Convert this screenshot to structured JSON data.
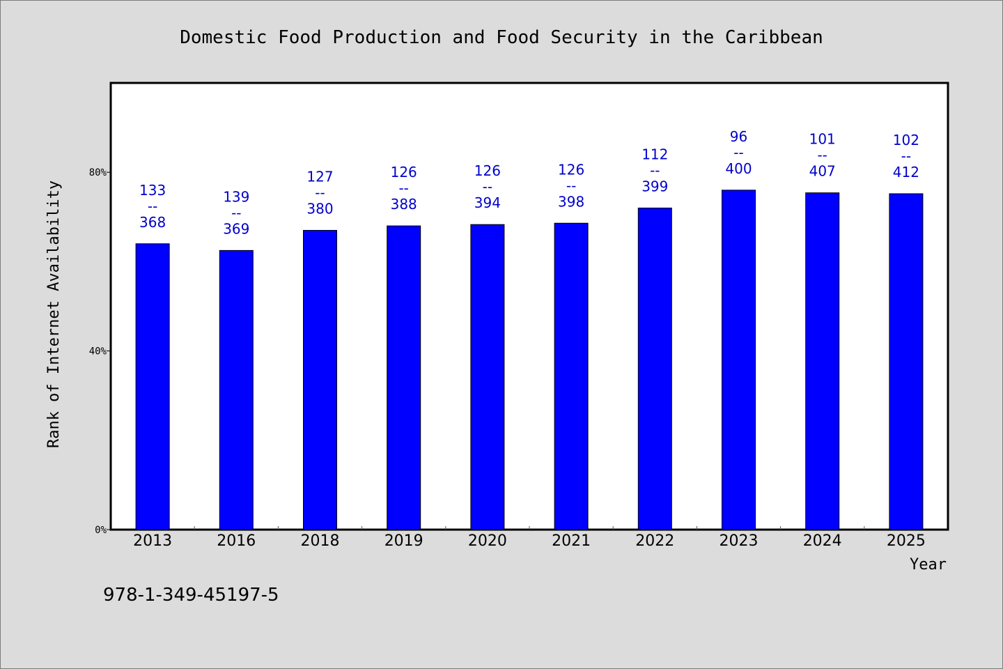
{
  "chart_data": {
    "type": "bar",
    "title": "Domestic Food Production and Food Security in the Caribbean",
    "xlabel": "Year",
    "ylabel": "Rank of Internet Availability",
    "categories": [
      "2013",
      "2016",
      "2018",
      "2019",
      "2020",
      "2021",
      "2022",
      "2023",
      "2024",
      "2025"
    ],
    "values": [
      64,
      62.5,
      67,
      68,
      68.3,
      68.6,
      72,
      76,
      75.4,
      75.2
    ],
    "labels_top": [
      "133",
      "139",
      "127",
      "126",
      "126",
      "126",
      "112",
      "96",
      "101",
      "102"
    ],
    "label_separator": "--",
    "labels_bottom": [
      "368",
      "369",
      "380",
      "388",
      "394",
      "398",
      "399",
      "400",
      "407",
      "412"
    ],
    "ylim": [
      0,
      100
    ],
    "yticks": [
      0,
      40,
      80
    ],
    "ytick_labels": [
      "0%",
      "40%",
      "80%"
    ],
    "grid": false,
    "colors": {
      "bar": "#0000ff",
      "label": "#0000cc",
      "background": "#dcdcdc",
      "plot": "#ffffff"
    }
  },
  "footer": {
    "isbn": "978-1-349-45197-5"
  }
}
